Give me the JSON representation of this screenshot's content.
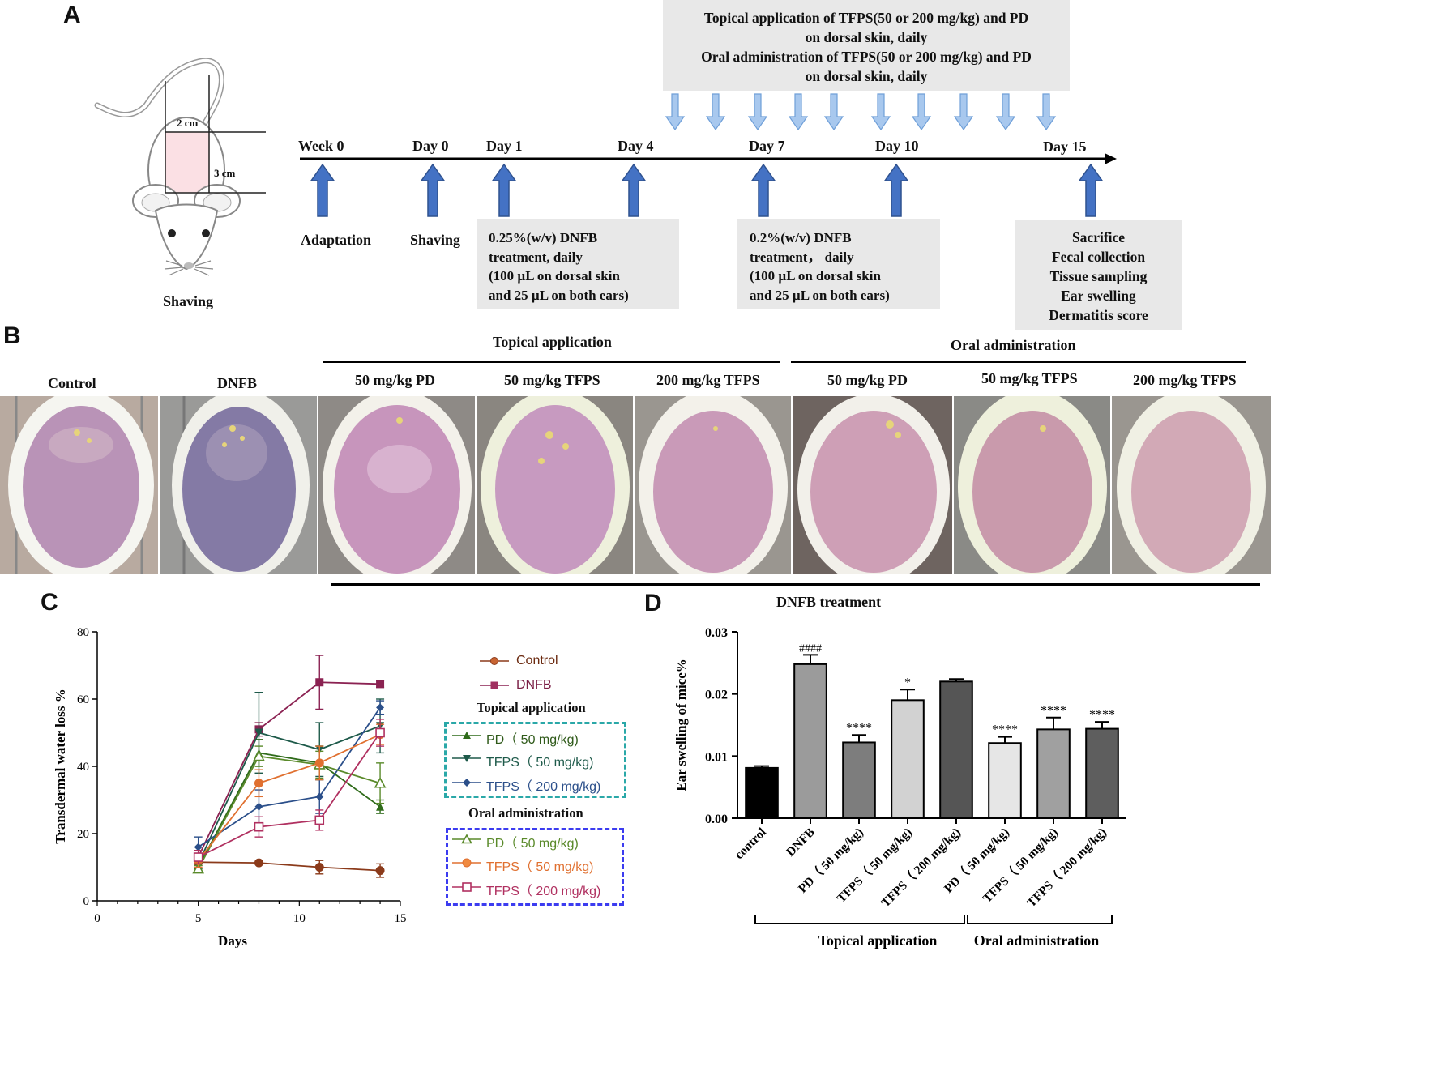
{
  "panels": {
    "a": "A",
    "b": "B",
    "c": "C",
    "d": "D"
  },
  "panelA": {
    "mouse_caption": "Shaving",
    "dim_width": "2 cm",
    "dim_height": "3 cm",
    "treatment_box": [
      "Topical application of TFPS(50 or 200 mg/kg) and PD",
      "on dorsal skin, daily",
      "Oral administration of TFPS(50 or 200 mg/kg) and PD",
      "on dorsal skin, daily"
    ],
    "timeline": [
      "Week 0",
      "Day 0",
      "Day 1",
      "Day 4",
      "Day 7",
      "Day 10",
      "Day 15"
    ],
    "below_labels": [
      "Adaptation",
      "Shaving"
    ],
    "box1": [
      "0.25%(w/v) DNFB",
      "treatment, daily",
      "(100 µL on dorsal skin",
      "and 25 µL on both ears)"
    ],
    "box2": [
      "0.2%(w/v) DNFB",
      "treatment， daily",
      "(100 µL on dorsal skin",
      "and 25 µL on both ears)"
    ],
    "box3": [
      "Sacrifice",
      "Fecal collection",
      "Tissue sampling",
      "Ear swelling",
      "Dermatitis score"
    ]
  },
  "panelB": {
    "topical_header": "Topical application",
    "oral_header": "Oral administration",
    "photo_labels": [
      "Control",
      "DNFB",
      "50 mg/kg PD",
      "50 mg/kg TFPS",
      "200 mg/kg TFPS",
      "50 mg/kg PD",
      "50 mg/kg TFPS",
      "200 mg/kg TFPS"
    ],
    "dnfb_treatment": "DNFB treatment"
  },
  "chart_data": [
    {
      "type": "line",
      "xlabel": "Days",
      "ylabel": "Transdermal water loss %",
      "xlim": [
        0,
        15
      ],
      "ylim": [
        0,
        80
      ],
      "xticks": [
        "0",
        "5",
        "10",
        "15"
      ],
      "yticks": [
        "0",
        "20",
        "40",
        "60",
        "80"
      ],
      "x": [
        5,
        8,
        11,
        14
      ],
      "legend_topical_title": "Topical application",
      "legend_oral_title": "Oral administration",
      "series": [
        {
          "name": "Control",
          "values": [
            11.5,
            11.3,
            10,
            9
          ],
          "err": [
            1,
            0.5,
            2,
            2
          ],
          "color": "#8b3a1a",
          "marker": "circle-filled",
          "group": "none"
        },
        {
          "name": "DNFB",
          "values": [
            13,
            51,
            65,
            64.5
          ],
          "err": [
            2,
            2,
            8,
            1
          ],
          "color": "#8b2252",
          "marker": "square-filled",
          "group": "none"
        },
        {
          "name": "PD（ 50 mg/kg)",
          "values": [
            10,
            44,
            41,
            28
          ],
          "err": [
            1.5,
            4,
            5,
            2
          ],
          "color": "#2f6b1a",
          "marker": "triangle-filled",
          "group": "topical"
        },
        {
          "name": "TFPS（ 50 mg/kg)",
          "values": [
            11,
            50,
            45,
            52
          ],
          "err": [
            1.5,
            12,
            8,
            8
          ],
          "color": "#1e5a4a",
          "marker": "triangle-down-filled",
          "group": "topical"
        },
        {
          "name": "TFPS（ 200 mg/kg)",
          "values": [
            16,
            28,
            31,
            57.5
          ],
          "err": [
            3,
            5,
            5,
            2
          ],
          "color": "#2b4f8a",
          "marker": "diamond-filled",
          "group": "topical"
        },
        {
          "name": "PD（ 50 mg/kg)",
          "values": [
            9.5,
            43,
            40.5,
            35
          ],
          "err": [
            1,
            3,
            4,
            6
          ],
          "color": "#5a8a2a",
          "marker": "triangle-open",
          "group": "oral"
        },
        {
          "name": "TFPS（ 50 mg/kg)",
          "values": [
            12,
            35,
            41,
            49.5
          ],
          "err": [
            2,
            4,
            5,
            3
          ],
          "color": "#e07030",
          "marker": "circle-filled",
          "group": "oral"
        },
        {
          "name": "TFPS（ 200 mg/kg)",
          "values": [
            13,
            22,
            24,
            50
          ],
          "err": [
            2,
            3,
            3,
            4
          ],
          "color": "#b03060",
          "marker": "square-open",
          "group": "oral"
        }
      ]
    },
    {
      "type": "bar",
      "ylabel": "Ear swelling of mice%",
      "ylim": [
        0,
        0.03
      ],
      "yticks": [
        "0.00",
        "0.01",
        "0.02",
        "0.03"
      ],
      "categories": [
        "control",
        "DNFB",
        "PD（ 50 mg/kg)",
        "TFPS（ 50 mg/kg)",
        "TFPS（ 200 mg/kg)",
        "PD（ 50 mg/kg)",
        "TFPS（ 50 mg/kg)",
        "TFPS（ 200 mg/kg)"
      ],
      "values": [
        0.0081,
        0.0248,
        0.0122,
        0.019,
        0.022,
        0.0121,
        0.0143,
        0.0144
      ],
      "err": [
        0.0003,
        0.0015,
        0.0012,
        0.0017,
        0.0004,
        0.001,
        0.0019,
        0.0011
      ],
      "annotations": [
        "",
        "####",
        "****",
        "*",
        "",
        "****",
        "****",
        "****"
      ],
      "colors": [
        "#000000",
        "#9b9b9b",
        "#7d7d7d",
        "#d2d2d2",
        "#555555",
        "#e6e6e6",
        "#a0a0a0",
        "#5e5e5e"
      ],
      "group_labels": [
        "Topical application",
        "Oral administration"
      ]
    }
  ]
}
